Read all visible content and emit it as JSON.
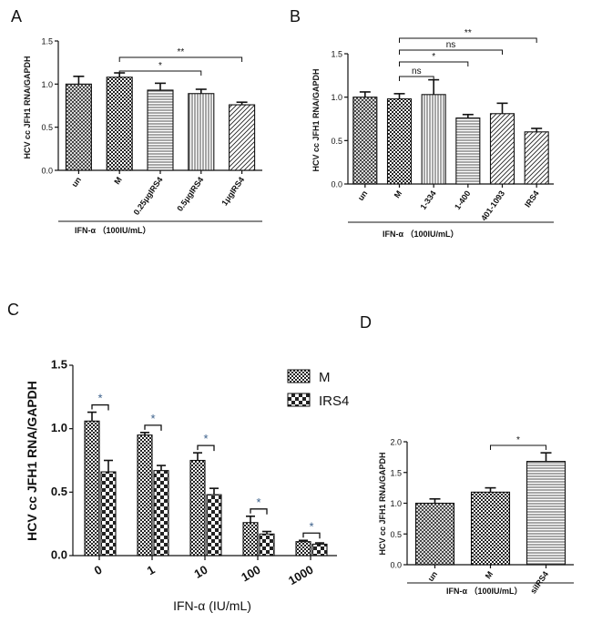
{
  "chart_data": [
    {
      "panel": "A",
      "type": "bar",
      "ylabel": "HCV cc JFH1 RNA/GAPDH",
      "ylim": [
        0,
        1.5
      ],
      "yticks": [
        "0.0",
        "0.5",
        "1.0",
        "1.5"
      ],
      "categories": [
        "un",
        "M",
        "0.25μgIRS4",
        "0.5μgIRS4",
        "1μgIRS4"
      ],
      "values": [
        1.0,
        1.08,
        0.93,
        0.89,
        0.76
      ],
      "errors": [
        0.09,
        0.05,
        0.08,
        0.05,
        0.03
      ],
      "patterns": [
        "cross",
        "check",
        "hlines",
        "vlines",
        "diag"
      ],
      "treatment_label": "IFN-α （100IU/mL）",
      "significance": [
        {
          "from": 1,
          "to": 3,
          "label": "*"
        },
        {
          "from": 1,
          "to": 4,
          "label": "**"
        }
      ]
    },
    {
      "panel": "B",
      "type": "bar",
      "ylabel": "HCV cc JFH1 RNA/GAPDH",
      "ylim": [
        0,
        1.5
      ],
      "yticks": [
        "0.0",
        "0.5",
        "1.0",
        "1.5"
      ],
      "categories": [
        "un",
        "M",
        "1-334",
        "1-400",
        "401-1093",
        "IRS4"
      ],
      "values": [
        1.0,
        0.98,
        1.03,
        0.76,
        0.81,
        0.6
      ],
      "errors": [
        0.06,
        0.06,
        0.17,
        0.04,
        0.12,
        0.04
      ],
      "patterns": [
        "cross",
        "check",
        "vlines",
        "hlines",
        "diag",
        "diag"
      ],
      "treatment_label": "IFN-α （100IU/mL）",
      "significance": [
        {
          "from": 1,
          "to": 2,
          "label": "ns"
        },
        {
          "from": 1,
          "to": 3,
          "label": "*"
        },
        {
          "from": 1,
          "to": 4,
          "label": "ns"
        },
        {
          "from": 1,
          "to": 5,
          "label": "**"
        }
      ]
    },
    {
      "panel": "C",
      "type": "bar",
      "xlabel": "IFN-α (IU/mL)",
      "ylabel": "HCV cc JFH1 RNA/GAPDH",
      "ylim": [
        0,
        1.5
      ],
      "yticks": [
        "0.0",
        "0.5",
        "1.0",
        "1.5"
      ],
      "categories": [
        "0",
        "1",
        "10",
        "100",
        "1000"
      ],
      "series": [
        {
          "name": "M",
          "values": [
            1.06,
            0.95,
            0.75,
            0.26,
            0.11
          ],
          "errors": [
            0.07,
            0.02,
            0.06,
            0.05,
            0.01
          ],
          "pattern": "check"
        },
        {
          "name": "IRS4",
          "values": [
            0.66,
            0.67,
            0.48,
            0.17,
            0.09
          ],
          "errors": [
            0.09,
            0.04,
            0.05,
            0.02,
            0.01
          ],
          "pattern": "bigcheck"
        }
      ],
      "significance": [
        "*",
        "*",
        "*",
        "*",
        "*"
      ]
    },
    {
      "panel": "D",
      "type": "bar",
      "ylabel": "HCV cc JFH1 RNA/GAPDH",
      "ylim": [
        0,
        2.0
      ],
      "yticks": [
        "0.0",
        "0.5",
        "1.0",
        "1.5",
        "2.0"
      ],
      "categories": [
        "un",
        "M",
        "siIRS4"
      ],
      "values": [
        1.0,
        1.18,
        1.68
      ],
      "errors": [
        0.07,
        0.07,
        0.14
      ],
      "patterns": [
        "cross",
        "check",
        "hlines"
      ],
      "treatment_label": "IFN-α （100IU/mL）",
      "significance": [
        {
          "from": 1,
          "to": 2,
          "label": "*"
        }
      ]
    }
  ]
}
